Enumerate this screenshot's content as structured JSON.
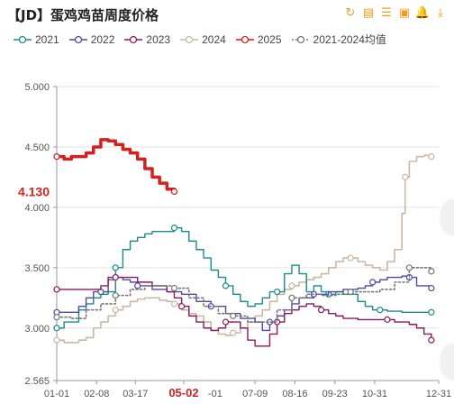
{
  "header": {
    "title": "【JD】蛋鸡鸡苗周度价格",
    "tools": [
      {
        "name": "refresh-icon",
        "glyph": "↻"
      },
      {
        "name": "data-view-icon",
        "glyph": "▤"
      },
      {
        "name": "list-icon",
        "glyph": "☰"
      },
      {
        "name": "image-icon",
        "glyph": "▣"
      },
      {
        "name": "bell-icon",
        "glyph": "🔔"
      },
      {
        "name": "download-icon",
        "glyph": "⤓"
      }
    ]
  },
  "chart_data": {
    "type": "line",
    "title": "【JD】蛋鸡鸡苗周度价格",
    "ylim": [
      2.565,
      5.0
    ],
    "yticks": [
      "5.000",
      "4.500",
      "4.000",
      "3.500",
      "3.000",
      "2.565"
    ],
    "xtick_labels": [
      "01-01",
      "02-08",
      "03-17",
      "05-02",
      "07-09",
      "08-16",
      "09-23",
      "10-31",
      "12-31"
    ],
    "xtick_days": [
      1,
      39,
      76,
      122,
      190,
      228,
      266,
      304,
      365
    ],
    "highlight_x_label": "05-02",
    "current_value_label": "4.130",
    "grid": true,
    "legend_position": "top",
    "series": [
      {
        "name": "2021",
        "color": "#1e8a8a",
        "style": "solid",
        "width": 1.4,
        "points": [
          [
            1,
            3.0
          ],
          [
            8,
            3.05
          ],
          [
            22,
            3.15
          ],
          [
            29,
            3.2
          ],
          [
            36,
            3.25
          ],
          [
            43,
            3.28
          ],
          [
            50,
            3.3
          ],
          [
            57,
            3.5
          ],
          [
            64,
            3.65
          ],
          [
            71,
            3.72
          ],
          [
            78,
            3.75
          ],
          [
            85,
            3.78
          ],
          [
            92,
            3.8
          ],
          [
            106,
            3.8
          ],
          [
            113,
            3.83
          ],
          [
            120,
            3.8
          ],
          [
            127,
            3.72
          ],
          [
            134,
            3.65
          ],
          [
            141,
            3.58
          ],
          [
            148,
            3.48
          ],
          [
            155,
            3.42
          ],
          [
            162,
            3.35
          ],
          [
            169,
            3.28
          ],
          [
            176,
            3.22
          ],
          [
            183,
            3.18
          ],
          [
            190,
            3.2
          ],
          [
            197,
            3.25
          ],
          [
            204,
            3.3
          ],
          [
            211,
            3.3
          ],
          [
            218,
            3.45
          ],
          [
            225,
            3.52
          ],
          [
            232,
            3.45
          ],
          [
            239,
            3.3
          ],
          [
            246,
            3.35
          ],
          [
            253,
            3.3
          ],
          [
            260,
            3.28
          ],
          [
            267,
            3.3
          ],
          [
            274,
            3.28
          ],
          [
            281,
            3.28
          ],
          [
            288,
            3.22
          ],
          [
            295,
            3.18
          ],
          [
            302,
            3.15
          ],
          [
            309,
            3.15
          ],
          [
            316,
            3.14
          ],
          [
            330,
            3.13
          ],
          [
            344,
            3.13
          ],
          [
            358,
            3.13
          ]
        ]
      },
      {
        "name": "2022",
        "color": "#4b4ba8",
        "style": "solid",
        "width": 1.4,
        "points": [
          [
            1,
            3.13
          ],
          [
            15,
            3.13
          ],
          [
            22,
            3.18
          ],
          [
            29,
            3.25
          ],
          [
            36,
            3.3
          ],
          [
            43,
            3.3
          ],
          [
            50,
            3.4
          ],
          [
            57,
            3.42
          ],
          [
            64,
            3.4
          ],
          [
            71,
            3.38
          ],
          [
            78,
            3.35
          ],
          [
            92,
            3.32
          ],
          [
            106,
            3.3
          ],
          [
            120,
            3.28
          ],
          [
            134,
            3.22
          ],
          [
            148,
            3.18
          ],
          [
            162,
            3.12
          ],
          [
            176,
            3.08
          ],
          [
            190,
            3.05
          ],
          [
            197,
            2.98
          ],
          [
            204,
            3.05
          ],
          [
            211,
            3.1
          ],
          [
            218,
            3.15
          ],
          [
            225,
            3.2
          ],
          [
            232,
            3.25
          ],
          [
            246,
            3.28
          ],
          [
            260,
            3.3
          ],
          [
            274,
            3.32
          ],
          [
            288,
            3.33
          ],
          [
            295,
            3.35
          ],
          [
            302,
            3.38
          ],
          [
            309,
            3.4
          ],
          [
            316,
            3.42
          ],
          [
            323,
            3.42
          ],
          [
            330,
            3.43
          ],
          [
            337,
            3.42
          ],
          [
            344,
            3.35
          ],
          [
            358,
            3.33
          ]
        ]
      },
      {
        "name": "2023",
        "color": "#8b1a5a",
        "style": "solid",
        "width": 1.4,
        "points": [
          [
            1,
            3.32
          ],
          [
            8,
            3.32
          ],
          [
            22,
            3.32
          ],
          [
            36,
            3.32
          ],
          [
            43,
            3.35
          ],
          [
            50,
            3.42
          ],
          [
            57,
            3.42
          ],
          [
            71,
            3.42
          ],
          [
            78,
            3.38
          ],
          [
            92,
            3.35
          ],
          [
            106,
            3.3
          ],
          [
            113,
            3.25
          ],
          [
            120,
            3.18
          ],
          [
            127,
            3.1
          ],
          [
            134,
            3.05
          ],
          [
            141,
            3.0
          ],
          [
            148,
            2.98
          ],
          [
            155,
            3.0
          ],
          [
            162,
            3.05
          ],
          [
            176,
            3.0
          ],
          [
            183,
            2.9
          ],
          [
            190,
            2.85
          ],
          [
            197,
            2.85
          ],
          [
            204,
            2.95
          ],
          [
            211,
            3.05
          ],
          [
            218,
            3.12
          ],
          [
            225,
            3.15
          ],
          [
            232,
            3.18
          ],
          [
            239,
            3.2
          ],
          [
            246,
            3.18
          ],
          [
            253,
            3.15
          ],
          [
            260,
            3.12
          ],
          [
            267,
            3.1
          ],
          [
            274,
            3.08
          ],
          [
            288,
            3.07
          ],
          [
            302,
            3.07
          ],
          [
            316,
            3.07
          ],
          [
            323,
            3.05
          ],
          [
            330,
            3.05
          ],
          [
            337,
            3.03
          ],
          [
            344,
            3.0
          ],
          [
            351,
            2.95
          ],
          [
            358,
            2.9
          ]
        ]
      },
      {
        "name": "2024",
        "color": "#c9b8a6",
        "style": "solid",
        "width": 1.6,
        "points": [
          [
            1,
            2.9
          ],
          [
            8,
            2.88
          ],
          [
            15,
            2.88
          ],
          [
            22,
            2.9
          ],
          [
            29,
            2.92
          ],
          [
            36,
            3.0
          ],
          [
            43,
            3.05
          ],
          [
            50,
            3.1
          ],
          [
            57,
            3.15
          ],
          [
            64,
            3.18
          ],
          [
            71,
            3.22
          ],
          [
            78,
            3.24
          ],
          [
            85,
            3.25
          ],
          [
            92,
            3.25
          ],
          [
            99,
            3.23
          ],
          [
            106,
            3.22
          ],
          [
            113,
            3.2
          ],
          [
            120,
            3.15
          ],
          [
            127,
            3.12
          ],
          [
            134,
            3.1
          ],
          [
            141,
            3.05
          ],
          [
            148,
            2.98
          ],
          [
            155,
            2.95
          ],
          [
            162,
            2.94
          ],
          [
            169,
            2.96
          ],
          [
            176,
            3.0
          ],
          [
            183,
            3.05
          ],
          [
            190,
            3.1
          ],
          [
            197,
            3.15
          ],
          [
            204,
            3.22
          ],
          [
            211,
            3.28
          ],
          [
            218,
            3.32
          ],
          [
            225,
            3.35
          ],
          [
            232,
            3.38
          ],
          [
            239,
            3.4
          ],
          [
            246,
            3.42
          ],
          [
            253,
            3.45
          ],
          [
            260,
            3.5
          ],
          [
            267,
            3.55
          ],
          [
            274,
            3.58
          ],
          [
            281,
            3.58
          ],
          [
            288,
            3.55
          ],
          [
            295,
            3.52
          ],
          [
            302,
            3.5
          ],
          [
            309,
            3.48
          ],
          [
            316,
            3.55
          ],
          [
            323,
            3.65
          ],
          [
            330,
            3.95
          ],
          [
            333,
            4.25
          ],
          [
            337,
            4.38
          ],
          [
            344,
            4.42
          ],
          [
            351,
            4.43
          ],
          [
            358,
            4.42
          ]
        ]
      },
      {
        "name": "2025",
        "color": "#d42020",
        "style": "solid",
        "width": 3.5,
        "points": [
          [
            1,
            4.42
          ],
          [
            8,
            4.4
          ],
          [
            15,
            4.42
          ],
          [
            22,
            4.42
          ],
          [
            29,
            4.45
          ],
          [
            36,
            4.5
          ],
          [
            43,
            4.56
          ],
          [
            50,
            4.55
          ],
          [
            57,
            4.52
          ],
          [
            64,
            4.48
          ],
          [
            71,
            4.45
          ],
          [
            78,
            4.4
          ],
          [
            85,
            4.32
          ],
          [
            92,
            4.25
          ],
          [
            99,
            4.2
          ],
          [
            106,
            4.15
          ],
          [
            113,
            4.13
          ]
        ]
      },
      {
        "name": "2021-2024均值",
        "color": "#777777",
        "style": "dotted",
        "width": 1.6,
        "points": [
          [
            1,
            3.09
          ],
          [
            15,
            3.08
          ],
          [
            29,
            3.15
          ],
          [
            43,
            3.2
          ],
          [
            57,
            3.27
          ],
          [
            71,
            3.32
          ],
          [
            85,
            3.35
          ],
          [
            99,
            3.35
          ],
          [
            113,
            3.33
          ],
          [
            127,
            3.25
          ],
          [
            141,
            3.18
          ],
          [
            155,
            3.12
          ],
          [
            169,
            3.1
          ],
          [
            183,
            3.05
          ],
          [
            197,
            3.05
          ],
          [
            211,
            3.15
          ],
          [
            225,
            3.25
          ],
          [
            239,
            3.28
          ],
          [
            253,
            3.27
          ],
          [
            267,
            3.28
          ],
          [
            281,
            3.3
          ],
          [
            295,
            3.3
          ],
          [
            309,
            3.32
          ],
          [
            323,
            3.38
          ],
          [
            337,
            3.5
          ],
          [
            344,
            3.5
          ],
          [
            358,
            3.47
          ]
        ]
      }
    ]
  }
}
